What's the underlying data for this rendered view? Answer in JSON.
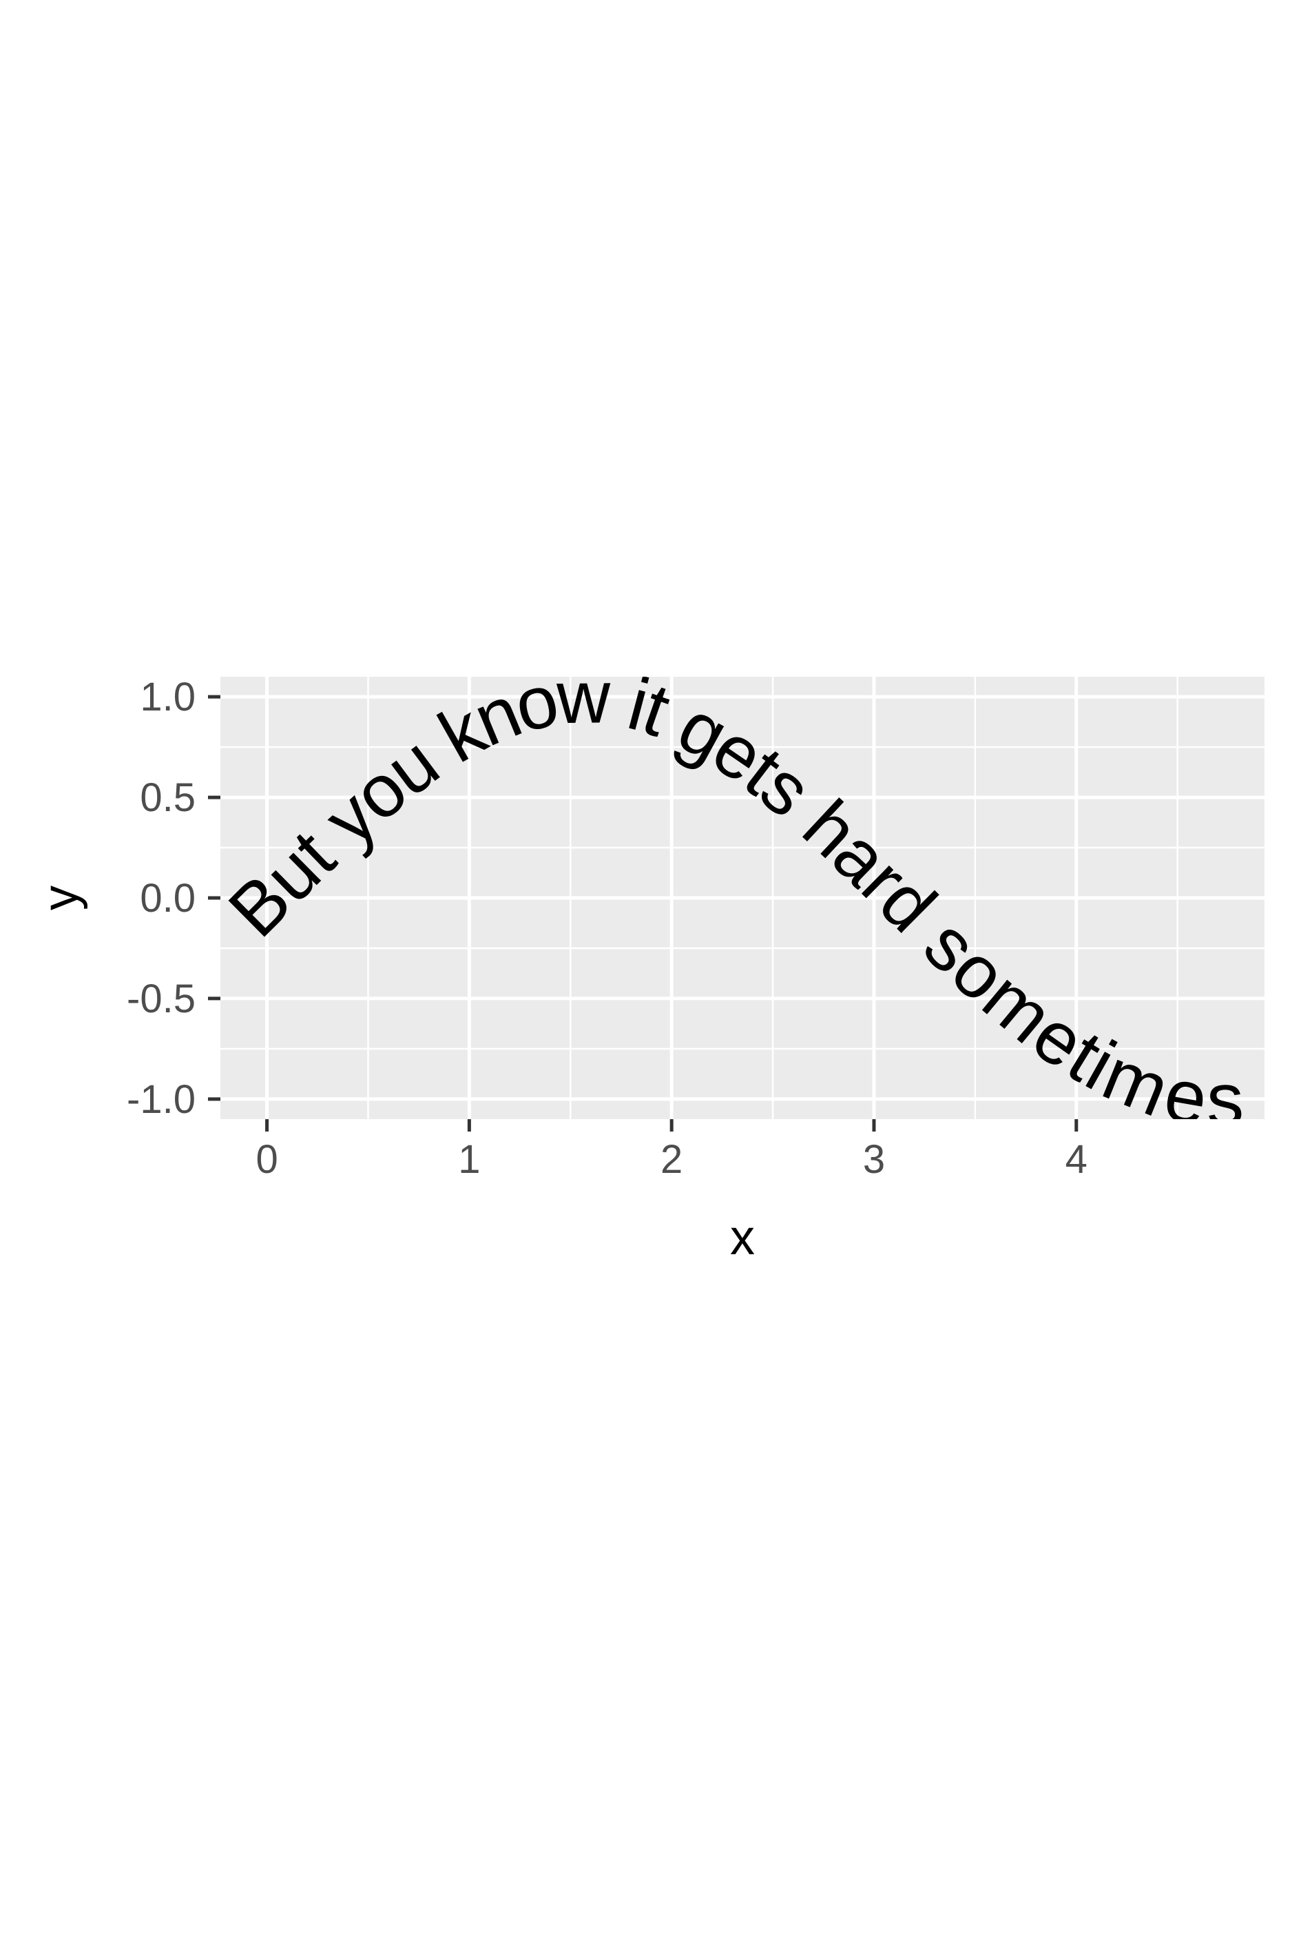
{
  "chart_data": {
    "type": "line",
    "xlabel": "x",
    "ylabel": "y",
    "xlim": [
      -0.23,
      4.93
    ],
    "ylim": [
      -1.1,
      1.1
    ],
    "x_ticks": [
      0,
      1,
      2,
      3,
      4
    ],
    "x_tick_labels": [
      "0",
      "1",
      "2",
      "3",
      "4"
    ],
    "y_ticks": [
      -1,
      -0.5,
      0,
      0.5,
      1
    ],
    "y_tick_labels": [
      "-1.0",
      "-0.5",
      "0.0",
      "0.5",
      "1.0"
    ],
    "grid": true,
    "series": [
      {
        "label_text": "But you know it gets hard sometimes",
        "function": "sin",
        "x": [
          -0.25,
          0,
          0.25,
          0.5,
          0.75,
          1,
          1.25,
          1.5,
          1.75,
          2,
          2.25,
          2.5,
          2.75,
          3,
          3.25,
          3.5,
          3.75,
          4,
          4.25,
          4.5,
          4.75,
          5
        ],
        "y": [
          -0.247,
          0,
          0.247,
          0.479,
          0.682,
          0.841,
          0.949,
          0.997,
          0.984,
          0.909,
          0.778,
          0.598,
          0.382,
          0.141,
          -0.108,
          -0.351,
          -0.572,
          -0.757,
          -0.895,
          -0.978,
          -0.999,
          -0.959
        ]
      }
    ],
    "colors": {
      "panel_background": "#ebebeb",
      "grid": "#ffffff",
      "text": "#000000",
      "tick_label": "#4d4d4d",
      "tick": "#333333"
    }
  }
}
